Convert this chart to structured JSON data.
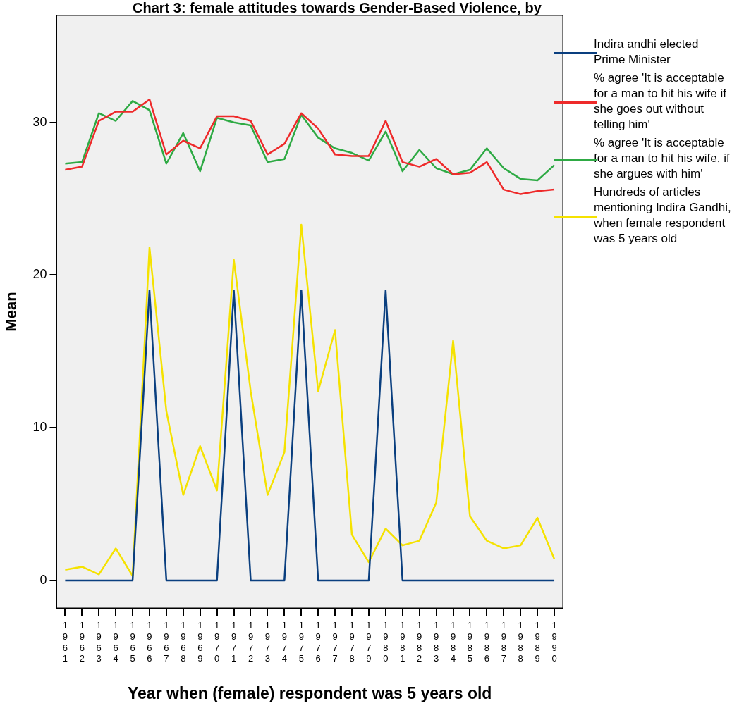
{
  "chart_data": {
    "type": "line",
    "title": "Chart 3:  female attitudes towards Gender-Based Violence, by",
    "xlabel": "Year when (female) respondent was 5 years old",
    "ylabel": "Mean",
    "categories": [
      "1961",
      "1962",
      "1963",
      "1964",
      "1965",
      "1966",
      "1967",
      "1968",
      "1969",
      "1970",
      "1971",
      "1972",
      "1973",
      "1974",
      "1975",
      "1976",
      "1977",
      "1978",
      "1979",
      "1980",
      "1981",
      "1982",
      "1983",
      "1984",
      "1985",
      "1986",
      "1987",
      "1988",
      "1989",
      "1990"
    ],
    "series": [
      {
        "name": "Indira andhi elected Prime Minister",
        "color": "#0a3f7f",
        "values": [
          0,
          0,
          0,
          0,
          0,
          19,
          0,
          0,
          0,
          0,
          19,
          0,
          0,
          0,
          19,
          0,
          0,
          0,
          0,
          19,
          0,
          0,
          0,
          0,
          0,
          0,
          0,
          0,
          0,
          0
        ]
      },
      {
        "name": "% agree 'It is acceptable for a man to hit his wife if she goes out without telling him'",
        "color": "#ee2a2a",
        "values": [
          26.9,
          27.1,
          30.1,
          30.7,
          30.7,
          31.5,
          27.9,
          28.8,
          28.3,
          30.4,
          30.4,
          30.1,
          27.9,
          28.6,
          30.6,
          29.6,
          27.9,
          27.8,
          27.8,
          30.1,
          27.4,
          27.1,
          27.6,
          26.6,
          26.7,
          27.4,
          25.6,
          25.3,
          25.5,
          25.6
        ]
      },
      {
        "name": "% agree 'It is acceptable for a man to hit his wife, if she argues with him'",
        "color": "#2eaa44",
        "values": [
          27.3,
          27.4,
          30.6,
          30.1,
          31.4,
          30.8,
          27.3,
          29.3,
          26.8,
          30.3,
          30.0,
          29.8,
          27.4,
          27.6,
          30.5,
          29.0,
          28.3,
          28.0,
          27.5,
          29.4,
          26.8,
          28.2,
          27.0,
          26.6,
          26.9,
          28.3,
          27.0,
          26.3,
          26.2,
          27.2
        ]
      },
      {
        "name": "Hundreds of articles mentioning Indira Gandhi, when female respondent was 5 years old",
        "color": "#f5e200",
        "values": [
          0.7,
          0.9,
          0.4,
          2.1,
          0.3,
          21.8,
          11.1,
          5.6,
          8.8,
          5.9,
          21.0,
          12.4,
          5.6,
          8.4,
          23.3,
          12.4,
          16.4,
          3.0,
          1.2,
          3.4,
          2.3,
          2.6,
          5.1,
          15.7,
          4.2,
          2.6,
          2.1,
          2.3,
          4.1,
          1.4
        ]
      }
    ],
    "ylim": [
      -1.8,
      37
    ],
    "yticks": [
      0,
      10,
      20,
      30
    ],
    "grid": false,
    "legend": "right",
    "marker": "none",
    "line_style": "solid"
  }
}
